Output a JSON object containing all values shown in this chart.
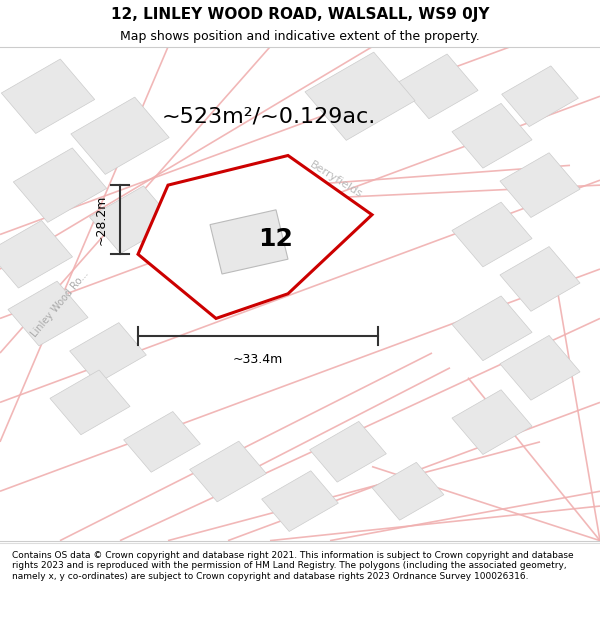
{
  "title": "12, LINLEY WOOD ROAD, WALSALL, WS9 0JY",
  "subtitle": "Map shows position and indicative extent of the property.",
  "area_label": "~523m²/~0.129ac.",
  "plot_number": "12",
  "width_label": "~33.4m",
  "height_label": "~28.2m",
  "road_label_linley": "Linley Wood Ro...",
  "road_label_berryfields": "Berryfields",
  "footer": "Contains OS data © Crown copyright and database right 2021. This information is subject to Crown copyright and database rights 2023 and is reproduced with the permission of HM Land Registry. The polygons (including the associated geometry, namely x, y co-ordinates) are subject to Crown copyright and database rights 2023 Ordnance Survey 100026316.",
  "map_bg": "#ffffff",
  "plot_fill": "#ffffff",
  "plot_edge_color": "#cc0000",
  "building_fill": "#e8e8e8",
  "building_edge": "#cccccc",
  "road_line_color": "#f0b0b0",
  "road_fill_color": "#fafafa",
  "block_outline": "#cccccc",
  "dim_line_color": "#333333",
  "title_fontsize": 11,
  "subtitle_fontsize": 9,
  "area_fontsize": 16,
  "plot_num_fontsize": 18,
  "footer_fontsize": 6.5
}
